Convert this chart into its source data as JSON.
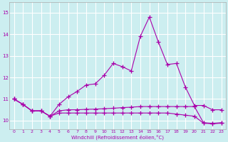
{
  "xlabel": "Windchill (Refroidissement éolien,°C)",
  "background_color": "#cceef0",
  "grid_color": "#ffffff",
  "line_color": "#aa00aa",
  "x_ticks": [
    0,
    1,
    2,
    3,
    4,
    5,
    6,
    7,
    8,
    9,
    10,
    11,
    12,
    13,
    14,
    15,
    16,
    17,
    18,
    19,
    20,
    21,
    22,
    23
  ],
  "y_ticks": [
    10,
    11,
    12,
    13,
    14,
    15
  ],
  "ylim": [
    9.6,
    15.5
  ],
  "xlim": [
    -0.5,
    23.5
  ],
  "main_y": [
    11.0,
    10.75,
    10.45,
    10.45,
    10.2,
    10.75,
    11.1,
    11.35,
    11.65,
    11.7,
    12.1,
    12.65,
    12.5,
    12.3,
    13.9,
    14.8,
    13.65,
    12.6,
    12.65,
    11.55,
    10.7,
    10.7,
    10.5,
    10.5
  ],
  "flat1_y": [
    11.0,
    10.75,
    10.45,
    10.45,
    10.2,
    10.45,
    10.5,
    10.5,
    10.52,
    10.53,
    10.55,
    10.57,
    10.6,
    10.62,
    10.65,
    10.65,
    10.65,
    10.65,
    10.65,
    10.65,
    10.65,
    9.9,
    9.87,
    9.9
  ],
  "flat2_y": [
    11.0,
    10.75,
    10.45,
    10.45,
    10.2,
    10.35,
    10.35,
    10.35,
    10.35,
    10.35,
    10.35,
    10.35,
    10.35,
    10.35,
    10.35,
    10.35,
    10.35,
    10.35,
    10.3,
    10.25,
    10.2,
    9.88,
    9.85,
    9.88
  ]
}
